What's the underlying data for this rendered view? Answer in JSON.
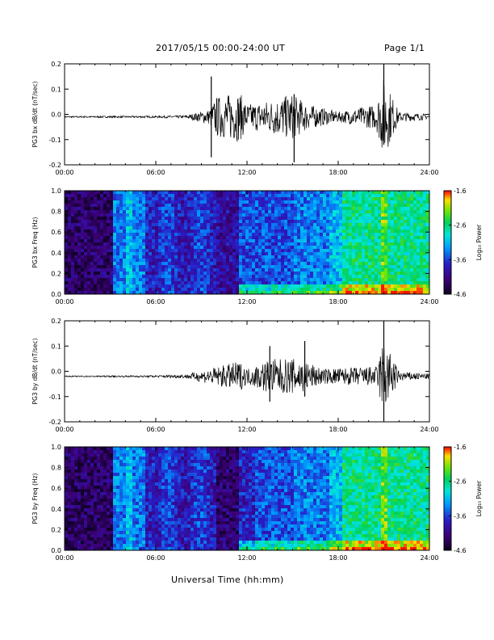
{
  "header": {
    "date_range": "2017/05/15  00:00-24:00 UT",
    "page": "Page 1/1"
  },
  "x_axis_title": "Universal Time (hh:mm)",
  "chart_data": [
    {
      "type": "line",
      "id": "bx-dbdt",
      "ylabel": "PG3 bx dB/dt (nT/sec)",
      "xlim": [
        "00:00",
        "24:00"
      ],
      "x_ticks": [
        "00:00",
        "06:00",
        "12:00",
        "18:00",
        "24:00"
      ],
      "ylim": [
        -0.2,
        0.2
      ],
      "y_ticks": [
        "-0.2",
        "-0.1",
        "0.0",
        "0.1",
        "0.2"
      ],
      "baseline": -0.01,
      "envelope": [
        {
          "t": 0,
          "amp": 0.003
        },
        {
          "t": 6,
          "amp": 0.004
        },
        {
          "t": 8,
          "amp": 0.006
        },
        {
          "t": 9.5,
          "amp": 0.03
        },
        {
          "t": 10,
          "amp": 0.08
        },
        {
          "t": 11.5,
          "amp": 0.1
        },
        {
          "t": 12,
          "amp": 0.05
        },
        {
          "t": 13,
          "amp": 0.06
        },
        {
          "t": 15,
          "amp": 0.09
        },
        {
          "t": 16,
          "amp": 0.05
        },
        {
          "t": 18,
          "amp": 0.02
        },
        {
          "t": 20.5,
          "amp": 0.05
        },
        {
          "t": 21,
          "amp": 0.16
        },
        {
          "t": 22,
          "amp": 0.02
        },
        {
          "t": 24,
          "amp": 0.01
        }
      ],
      "spikes": [
        {
          "t": 9.65,
          "max": 0.15,
          "min": -0.17
        },
        {
          "t": 15.1,
          "max": 0.08,
          "min": -0.19
        },
        {
          "t": 21.0,
          "max": 0.2,
          "min": -0.12
        }
      ]
    },
    {
      "type": "heatmap",
      "id": "bx-spec",
      "ylabel": "PG3 bx Freq (Hz)",
      "xlim": [
        "00:00",
        "24:00"
      ],
      "x_ticks": [
        "00:00",
        "06:00",
        "12:00",
        "18:00",
        "24:00"
      ],
      "ylim": [
        0.0,
        1.0
      ],
      "y_ticks": [
        "0.0",
        "0.2",
        "0.4",
        "0.6",
        "0.8",
        "1.0"
      ],
      "colorbar": {
        "label": "Log₁₀ Power",
        "range": [
          -4.6,
          -1.6
        ],
        "ticks": [
          "-1.6",
          "-2.6",
          "-3.6",
          "-4.6"
        ]
      }
    },
    {
      "type": "line",
      "id": "by-dbdt",
      "ylabel": "PG3 by dB/dt (nT/sec)",
      "xlim": [
        "00:00",
        "24:00"
      ],
      "x_ticks": [
        "00:00",
        "06:00",
        "12:00",
        "18:00",
        "24:00"
      ],
      "ylim": [
        -0.2,
        0.2
      ],
      "y_ticks": [
        "-0.2",
        "-0.1",
        "0.0",
        "0.1",
        "0.2"
      ],
      "baseline": -0.02,
      "envelope": [
        {
          "t": 0,
          "amp": 0.002
        },
        {
          "t": 6,
          "amp": 0.004
        },
        {
          "t": 8,
          "amp": 0.008
        },
        {
          "t": 9.5,
          "amp": 0.03
        },
        {
          "t": 11.5,
          "amp": 0.06
        },
        {
          "t": 12,
          "amp": 0.03
        },
        {
          "t": 13.5,
          "amp": 0.07
        },
        {
          "t": 15.5,
          "amp": 0.07
        },
        {
          "t": 17,
          "amp": 0.03
        },
        {
          "t": 20.5,
          "amp": 0.04
        },
        {
          "t": 21,
          "amp": 0.15
        },
        {
          "t": 22,
          "amp": 0.02
        },
        {
          "t": 24,
          "amp": 0.01
        }
      ],
      "spikes": [
        {
          "t": 13.5,
          "max": 0.1,
          "min": -0.12
        },
        {
          "t": 15.8,
          "max": 0.12,
          "min": -0.1
        },
        {
          "t": 21.0,
          "max": 0.2,
          "min": -0.2
        }
      ]
    },
    {
      "type": "heatmap",
      "id": "by-spec",
      "ylabel": "PG3 by Freq (Hz)",
      "xlim": [
        "00:00",
        "24:00"
      ],
      "x_ticks": [
        "00:00",
        "06:00",
        "12:00",
        "18:00",
        "24:00"
      ],
      "ylim": [
        0.0,
        1.0
      ],
      "y_ticks": [
        "0.0",
        "0.2",
        "0.4",
        "0.6",
        "0.8",
        "1.0"
      ],
      "colorbar": {
        "label": "Log₁₀ Power",
        "range": [
          -4.6,
          -1.6
        ],
        "ticks": [
          "-1.6",
          "-2.6",
          "-3.6",
          "-4.6"
        ]
      }
    }
  ]
}
